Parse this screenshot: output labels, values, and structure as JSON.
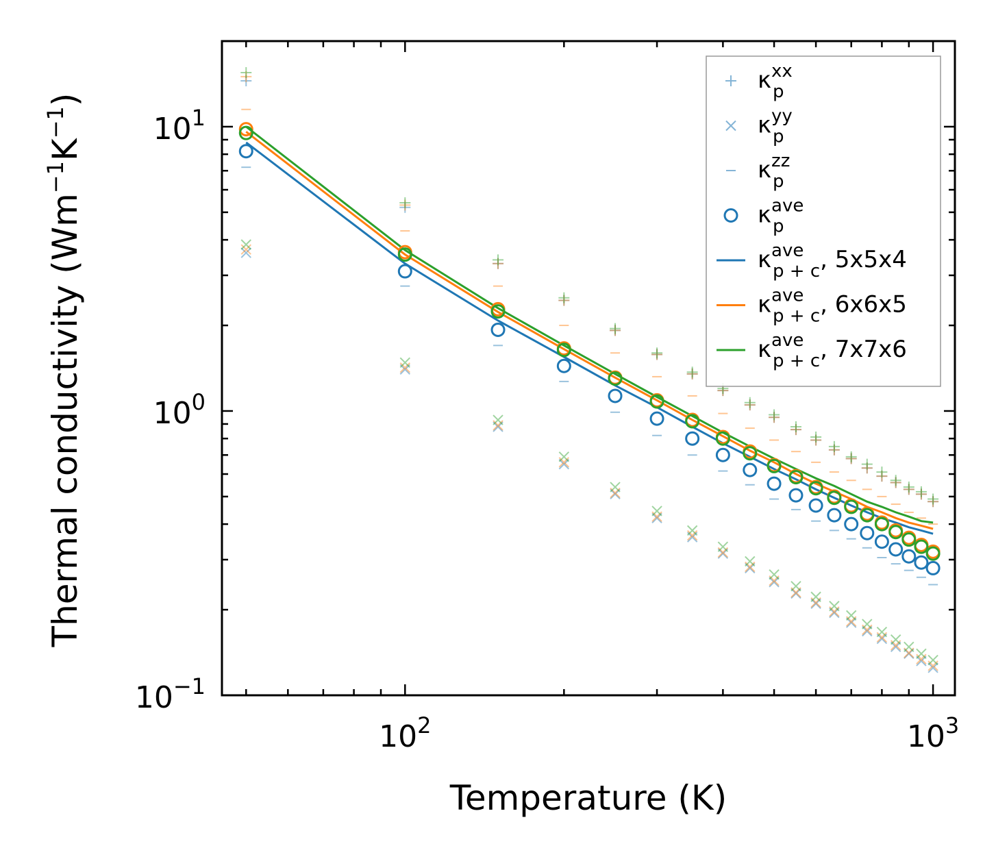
{
  "chart_data": {
    "type": "scatter",
    "title": "",
    "xlabel": "Temperature (K)",
    "ylabel_main": "Thermal conductivity (Wm",
    "ylabel_sup1": "−1",
    "ylabel_mid": "K",
    "ylabel_sup2": "−1",
    "ylabel_end": ")",
    "xscale": "log",
    "yscale": "log",
    "xlim": [
      45,
      1100
    ],
    "ylim": [
      0.1,
      20
    ],
    "xticks": [
      {
        "base": "10",
        "exp": "2",
        "value": 100
      },
      {
        "base": "10",
        "exp": "3",
        "value": 1000
      }
    ],
    "yticks": [
      {
        "base": "10",
        "exp": "−1",
        "value": 0.1
      },
      {
        "base": "10",
        "exp": "0",
        "value": 1
      },
      {
        "base": "10",
        "exp": "1",
        "value": 10
      }
    ],
    "x": [
      50,
      100,
      150,
      200,
      250,
      300,
      350,
      400,
      450,
      500,
      550,
      600,
      650,
      700,
      750,
      800,
      850,
      900,
      950,
      1000
    ],
    "legend_position": "top-right",
    "series": [
      {
        "name": "kxx_554",
        "marker": "plus",
        "color": "#1f77b4",
        "values": [
          14.5,
          5.2,
          3.3,
          2.45,
          1.92,
          1.58,
          1.35,
          1.18,
          1.05,
          0.95,
          0.86,
          0.79,
          0.73,
          0.68,
          0.63,
          0.59,
          0.56,
          0.53,
          0.51,
          0.48
        ]
      },
      {
        "name": "kxx_665",
        "marker": "plus",
        "color": "#ff7f0e",
        "values": [
          15.0,
          5.3,
          3.3,
          2.45,
          1.92,
          1.58,
          1.35,
          1.18,
          1.05,
          0.95,
          0.86,
          0.79,
          0.73,
          0.68,
          0.63,
          0.59,
          0.56,
          0.53,
          0.51,
          0.48
        ]
      },
      {
        "name": "kxx_776",
        "marker": "plus",
        "color": "#2ca02c",
        "values": [
          15.5,
          5.4,
          3.4,
          2.5,
          1.95,
          1.6,
          1.37,
          1.2,
          1.07,
          0.97,
          0.88,
          0.81,
          0.75,
          0.69,
          0.65,
          0.61,
          0.57,
          0.54,
          0.52,
          0.49
        ]
      },
      {
        "name": "kyy_554",
        "marker": "x",
        "color": "#1f77b4",
        "values": [
          3.6,
          1.4,
          0.88,
          0.65,
          0.51,
          0.42,
          0.36,
          0.315,
          0.28,
          0.25,
          0.228,
          0.21,
          0.195,
          0.18,
          0.168,
          0.158,
          0.148,
          0.14,
          0.132,
          0.125
        ]
      },
      {
        "name": "kyy_665",
        "marker": "x",
        "color": "#ff7f0e",
        "values": [
          3.7,
          1.42,
          0.89,
          0.66,
          0.515,
          0.425,
          0.365,
          0.318,
          0.283,
          0.253,
          0.23,
          0.212,
          0.197,
          0.182,
          0.17,
          0.16,
          0.15,
          0.141,
          0.134,
          0.127
        ]
      },
      {
        "name": "kyy_776",
        "marker": "x",
        "color": "#2ca02c",
        "values": [
          3.85,
          1.48,
          0.93,
          0.69,
          0.54,
          0.445,
          0.38,
          0.333,
          0.296,
          0.266,
          0.242,
          0.222,
          0.206,
          0.191,
          0.178,
          0.167,
          0.157,
          0.148,
          0.14,
          0.133
        ]
      },
      {
        "name": "kzz_554",
        "marker": "dash",
        "color": "#1f77b4",
        "values": [
          7.2,
          2.75,
          1.7,
          1.27,
          0.99,
          0.82,
          0.7,
          0.615,
          0.55,
          0.49,
          0.45,
          0.41,
          0.38,
          0.355,
          0.33,
          0.305,
          0.29,
          0.275,
          0.26,
          0.245
        ]
      },
      {
        "name": "kzz_665",
        "marker": "dash",
        "color": "#ff7f0e",
        "values": [
          11.5,
          4.3,
          2.75,
          2.0,
          1.6,
          1.32,
          1.13,
          0.98,
          0.87,
          0.79,
          0.72,
          0.66,
          0.61,
          0.57,
          0.53,
          0.5,
          0.47,
          0.44,
          0.42,
          0.4
        ]
      },
      {
        "name": "kave_554",
        "marker": "circle",
        "color": "#1f77b4",
        "values": [
          8.2,
          3.1,
          1.93,
          1.44,
          1.13,
          0.94,
          0.8,
          0.7,
          0.62,
          0.555,
          0.505,
          0.465,
          0.43,
          0.4,
          0.372,
          0.347,
          0.326,
          0.308,
          0.293,
          0.28
        ]
      },
      {
        "name": "kave_665",
        "marker": "circle",
        "color": "#ff7f0e",
        "values": [
          9.8,
          3.62,
          2.28,
          1.66,
          1.31,
          1.09,
          0.93,
          0.81,
          0.72,
          0.645,
          0.59,
          0.54,
          0.5,
          0.465,
          0.435,
          0.405,
          0.38,
          0.358,
          0.338,
          0.32
        ]
      },
      {
        "name": "kave_776",
        "marker": "circle",
        "color": "#2ca02c",
        "values": [
          9.5,
          3.55,
          2.24,
          1.64,
          1.3,
          1.08,
          0.92,
          0.8,
          0.71,
          0.64,
          0.585,
          0.535,
          0.495,
          0.46,
          0.43,
          0.4,
          0.375,
          0.353,
          0.333,
          0.315
        ]
      },
      {
        "name": "kpc_554",
        "marker": "line",
        "color": "#1f77b4",
        "values": [
          8.8,
          3.3,
          2.08,
          1.55,
          1.23,
          1.03,
          0.88,
          0.77,
          0.69,
          0.625,
          0.575,
          0.53,
          0.495,
          0.465,
          0.44,
          0.42,
          0.405,
          0.39,
          0.38,
          0.37
        ]
      },
      {
        "name": "kpc_665",
        "marker": "line",
        "color": "#ff7f0e",
        "values": [
          9.6,
          3.55,
          2.23,
          1.65,
          1.31,
          1.09,
          0.93,
          0.815,
          0.725,
          0.66,
          0.6,
          0.555,
          0.52,
          0.49,
          0.46,
          0.44,
          0.42,
          0.405,
          0.395,
          0.385
        ]
      },
      {
        "name": "kpc_776",
        "marker": "line",
        "color": "#2ca02c",
        "values": [
          10.0,
          3.68,
          2.3,
          1.7,
          1.35,
          1.12,
          0.96,
          0.84,
          0.75,
          0.68,
          0.625,
          0.58,
          0.545,
          0.51,
          0.48,
          0.46,
          0.44,
          0.425,
          0.41,
          0.405
        ]
      }
    ],
    "legend": [
      {
        "key": "kxx",
        "marker": "plus",
        "color": "#1f77b4",
        "base": "κ",
        "sup": "xx",
        "sub": "p",
        "suffix": ""
      },
      {
        "key": "kyy",
        "marker": "x",
        "color": "#1f77b4",
        "base": "κ",
        "sup": "yy",
        "sub": "p",
        "suffix": ""
      },
      {
        "key": "kzz",
        "marker": "dash",
        "color": "#1f77b4",
        "base": "κ",
        "sup": "zz",
        "sub": "p",
        "suffix": ""
      },
      {
        "key": "kave",
        "marker": "circle",
        "color": "#1f77b4",
        "base": "κ",
        "sup": "ave",
        "sub": "p",
        "suffix": ""
      },
      {
        "key": "kpc554",
        "marker": "line",
        "color": "#1f77b4",
        "base": "κ",
        "sup": "ave",
        "sub": "p + c",
        "suffix": ", 5x5x4"
      },
      {
        "key": "kpc665",
        "marker": "line",
        "color": "#ff7f0e",
        "base": "κ",
        "sup": "ave",
        "sub": "p + c",
        "suffix": ", 6x6x5"
      },
      {
        "key": "kpc776",
        "marker": "line",
        "color": "#2ca02c",
        "base": "κ",
        "sup": "ave",
        "sub": "p + c",
        "suffix": ", 7x7x6"
      }
    ]
  }
}
